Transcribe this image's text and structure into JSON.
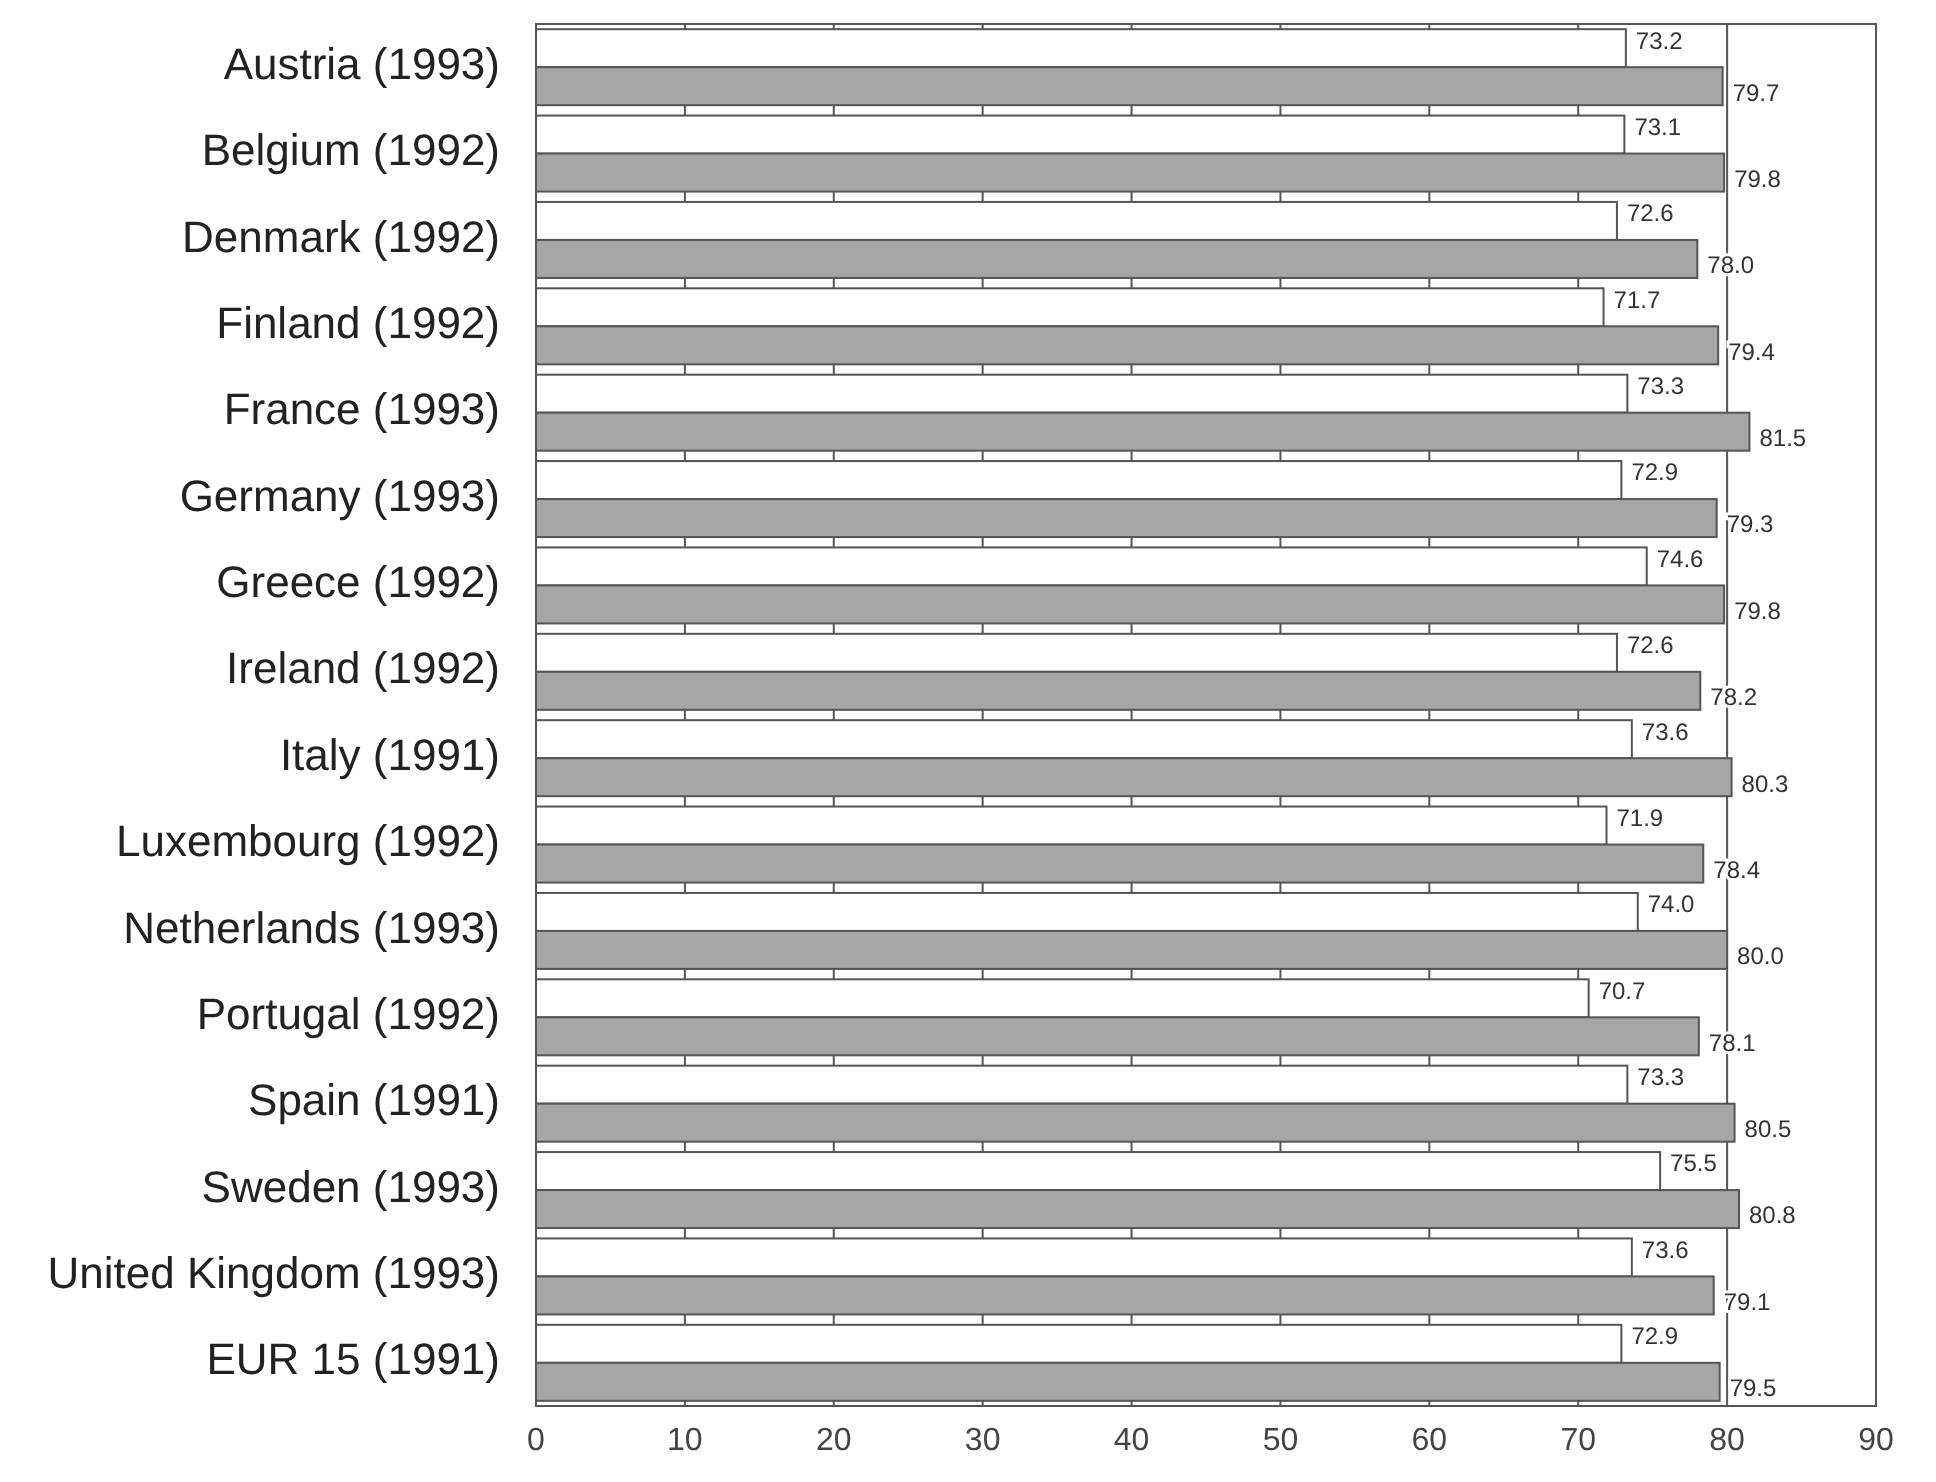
{
  "chart_data": {
    "type": "bar",
    "orientation": "horizontal",
    "categories": [
      "Austria (1993)",
      "Belgium (1992)",
      "Denmark (1992)",
      "Finland (1992)",
      "France (1993)",
      "Germany (1993)",
      "Greece (1992)",
      "Ireland (1992)",
      "Italy (1991)",
      "Luxembourg (1992)",
      "Netherlands (1993)",
      "Portugal (1992)",
      "Spain (1991)",
      "Sweden (1993)",
      "United Kingdom (1993)",
      "EUR 15 (1991)"
    ],
    "series": [
      {
        "color": "#ffffff",
        "values": [
          73.2,
          73.1,
          72.6,
          71.7,
          73.3,
          72.9,
          74.6,
          72.6,
          73.6,
          71.9,
          74.0,
          70.7,
          73.3,
          75.5,
          73.6,
          72.9
        ],
        "value_labels": [
          "73.2",
          "73.1",
          "72.6",
          "71.7",
          "73.3",
          "72.9",
          "74.6",
          "72.6",
          "73.6",
          "71.9",
          "74.0",
          "70.7",
          "73.3",
          "75.5",
          "73.6",
          "72.9"
        ]
      },
      {
        "color": "#a6a6a6",
        "values": [
          79.7,
          79.8,
          78.0,
          79.4,
          81.5,
          79.3,
          79.8,
          78.2,
          80.3,
          78.4,
          80.0,
          78.1,
          80.5,
          80.8,
          79.1,
          79.5
        ],
        "value_labels": [
          "79.7",
          "79.8",
          "78.0",
          "79.4",
          "81.5",
          "79.3",
          "79.8",
          "78.2",
          "80.3",
          "78.4",
          "80.0",
          "78.1",
          "80.5",
          "80.8",
          "79.1",
          "79.5"
        ]
      }
    ],
    "xlim": [
      0,
      90
    ],
    "xticks": [
      0,
      10,
      20,
      30,
      40,
      50,
      60,
      70,
      80,
      90
    ],
    "grid": "x"
  }
}
